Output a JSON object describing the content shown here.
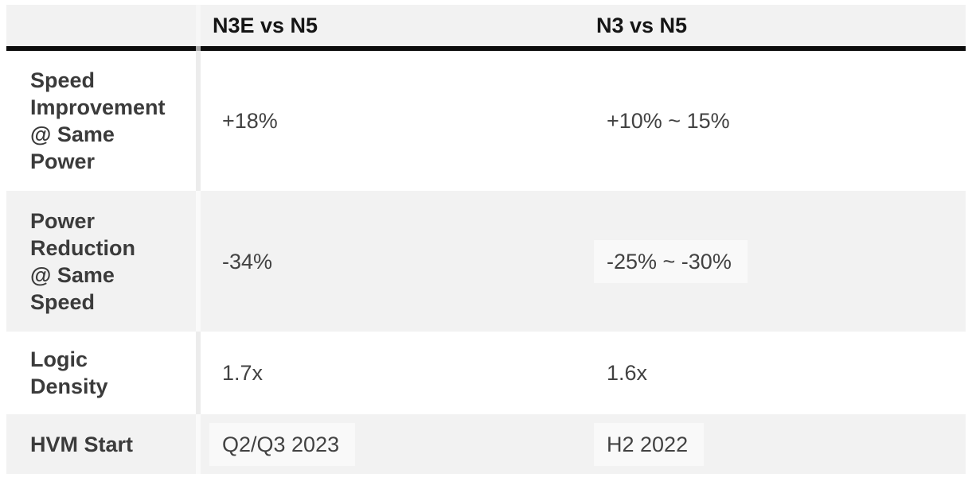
{
  "colors": {
    "stripe_bg": "#f2f2f2",
    "header_bg": "#f2f2f2",
    "header_rule": "#0c0c0c",
    "label_text": "#3b3b3b",
    "value_text": "#424242"
  },
  "table": {
    "columns": [
      {
        "label": ""
      },
      {
        "label": "N3E vs N5"
      },
      {
        "label": "N3 vs N5"
      }
    ],
    "rows": [
      {
        "label": "Speed\nImprovement\n@ Same\nPower",
        "n3e_vs_n5": "+18%",
        "n3_vs_n5": "+10% ~ 15%"
      },
      {
        "label": "Power\nReduction\n@ Same\nSpeed",
        "n3e_vs_n5": "-34%",
        "n3_vs_n5": "-25% ~ -30%"
      },
      {
        "label": "Logic\nDensity",
        "n3e_vs_n5": "1.7x",
        "n3_vs_n5": "1.6x"
      },
      {
        "label": "HVM Start",
        "n3e_vs_n5": "Q2/Q3 2023",
        "n3_vs_n5": "H2 2022"
      }
    ]
  },
  "chart_data": {
    "type": "table",
    "title": "",
    "columns": [
      "",
      "N3E vs N5",
      "N3 vs N5"
    ],
    "rows": [
      [
        "Speed Improvement @ Same Power",
        "+18%",
        "+10% ~ 15%"
      ],
      [
        "Power Reduction @ Same Speed",
        "-34%",
        "-25% ~ -30%"
      ],
      [
        "Logic Density",
        "1.7x",
        "1.6x"
      ],
      [
        "HVM Start",
        "Q2/Q3 2023",
        "H2 2022"
      ]
    ]
  }
}
